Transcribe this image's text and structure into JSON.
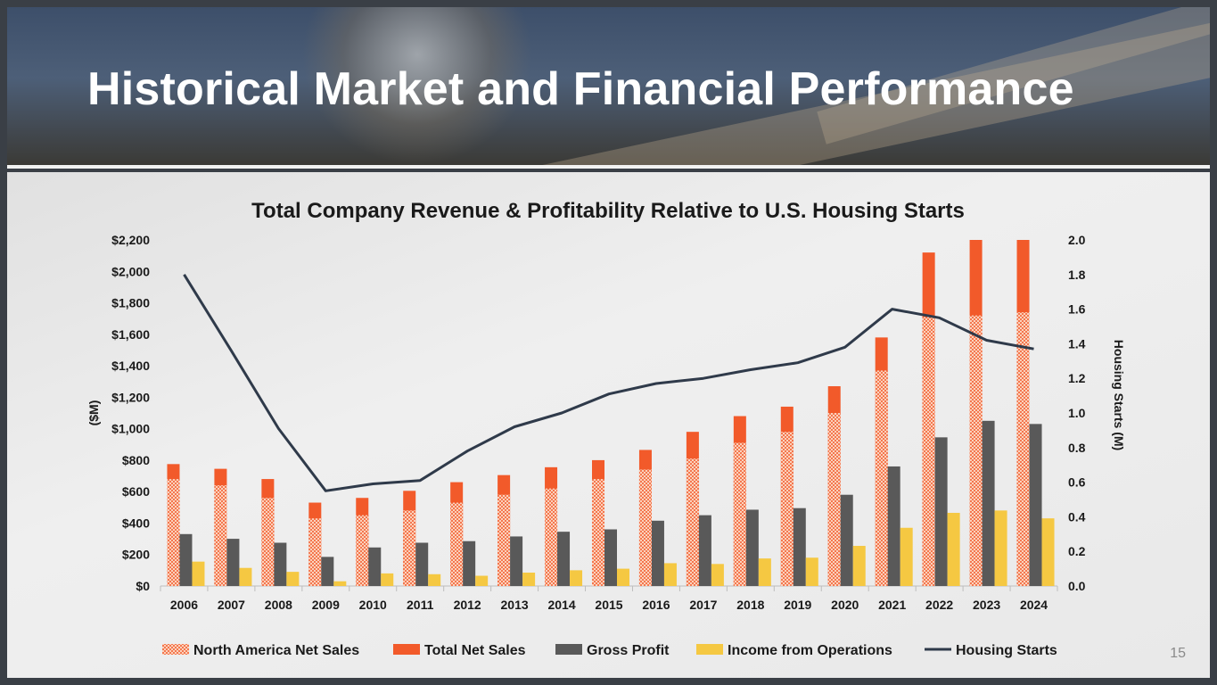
{
  "slide": {
    "title": "Historical Market and Financial Performance",
    "page_number": "15"
  },
  "colors": {
    "north_america": "#f25a2a",
    "total_net_sales": "#f25a2a",
    "gross_profit": "#595959",
    "income_from_operations": "#f5c842",
    "housing_starts": "#2f3a4a"
  },
  "chart_data": {
    "type": "bar",
    "title": "Total Company Revenue & Profitability Relative to U.S. Housing Starts",
    "categories": [
      "2006",
      "2007",
      "2008",
      "2009",
      "2010",
      "2011",
      "2012",
      "2013",
      "2014",
      "2015",
      "2016",
      "2017",
      "2018",
      "2019",
      "2020",
      "2021",
      "2022",
      "2023",
      "2024"
    ],
    "ylabel": "($M)",
    "y2label": "Housing Starts (M)",
    "ylim": [
      0,
      2200
    ],
    "y2lim": [
      0,
      2.0
    ],
    "yticks": [
      "$0",
      "$200",
      "$400",
      "$600",
      "$800",
      "$1,000",
      "$1,200",
      "$1,400",
      "$1,600",
      "$1,800",
      "$2,000",
      "$2,200"
    ],
    "y2ticks": [
      "0.0",
      "0.2",
      "0.4",
      "0.6",
      "0.8",
      "1.0",
      "1.2",
      "1.4",
      "1.6",
      "1.8",
      "2.0"
    ],
    "series": [
      {
        "name": "North America Net Sales",
        "type": "bar",
        "pattern": "dotted",
        "values": [
          680,
          640,
          560,
          430,
          450,
          480,
          530,
          580,
          620,
          680,
          740,
          810,
          910,
          980,
          1100,
          1370,
          1710,
          1720,
          1740
        ]
      },
      {
        "name": "Total Net Sales",
        "type": "bar",
        "values": [
          775,
          745,
          680,
          530,
          560,
          605,
          660,
          705,
          755,
          800,
          865,
          980,
          1080,
          1140,
          1270,
          1580,
          2120,
          2200,
          2200
        ]
      },
      {
        "name": "Gross Profit",
        "type": "bar",
        "values": [
          330,
          300,
          275,
          185,
          245,
          275,
          285,
          315,
          345,
          360,
          415,
          450,
          485,
          495,
          580,
          760,
          945,
          1050,
          1030
        ]
      },
      {
        "name": "Income from Operations",
        "type": "bar",
        "values": [
          155,
          115,
          90,
          30,
          80,
          75,
          65,
          85,
          100,
          110,
          145,
          140,
          175,
          180,
          255,
          370,
          465,
          480,
          430
        ]
      },
      {
        "name": "Housing Starts",
        "type": "line",
        "axis": "y2",
        "values": [
          1.8,
          1.36,
          0.91,
          0.55,
          0.59,
          0.61,
          0.78,
          0.92,
          1.0,
          1.11,
          1.17,
          1.2,
          1.25,
          1.29,
          1.38,
          1.6,
          1.55,
          1.42,
          1.37
        ]
      }
    ],
    "legend": {
      "placement": "bottom",
      "items": [
        "North America Net Sales",
        "Total Net Sales",
        "Gross Profit",
        "Income from Operations",
        "Housing Starts"
      ]
    }
  }
}
